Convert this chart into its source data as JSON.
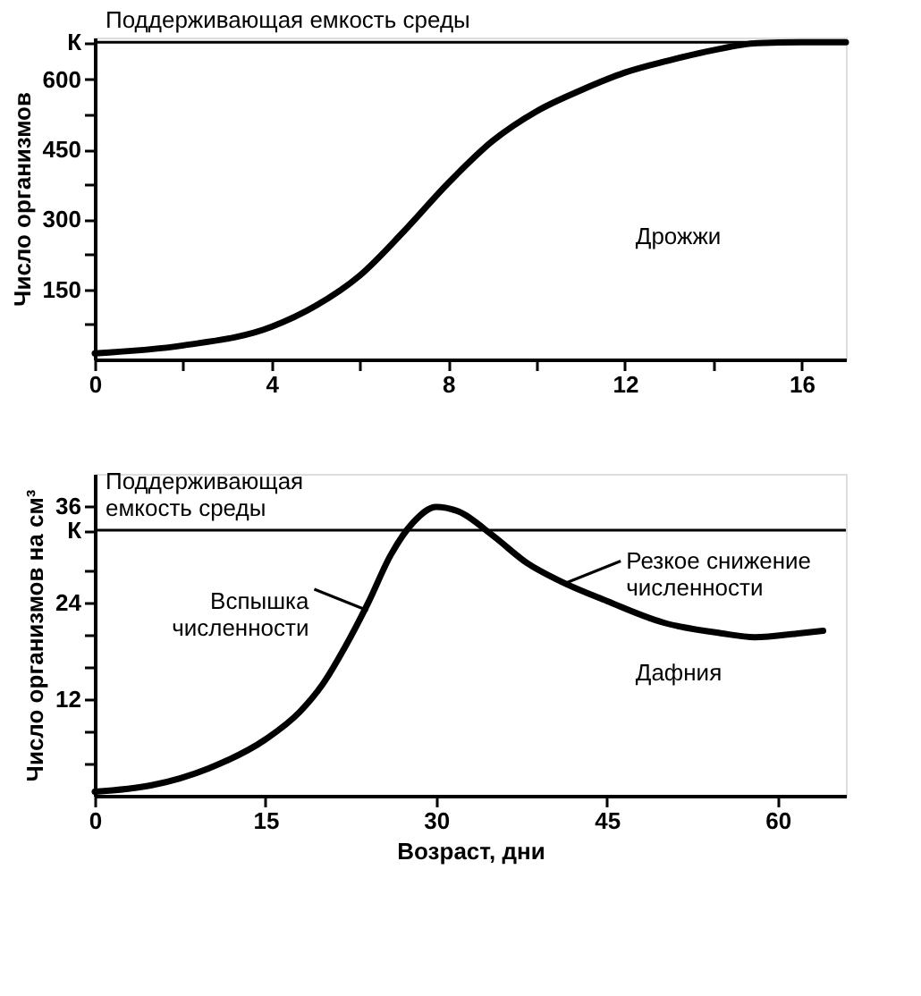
{
  "chart_data": [
    {
      "type": "line",
      "ylabel": "Число организмов",
      "xlim": [
        0,
        17
      ],
      "ylim": [
        0,
        690
      ],
      "xticks": [
        0,
        {
          "value": 2,
          "label": null
        },
        4,
        {
          "value": 6,
          "label": null
        },
        8,
        {
          "value": 10,
          "label": null
        },
        12,
        {
          "value": 14,
          "label": null
        },
        16
      ],
      "yticks": [
        {
          "value": 75,
          "label": null
        },
        150,
        {
          "value": 225,
          "label": null
        },
        300,
        {
          "value": 375,
          "label": null
        },
        450,
        {
          "value": 525,
          "label": null
        },
        600,
        {
          "value": 680,
          "label": "К"
        }
      ],
      "series": [
        {
          "color": "#000000",
          "x": [
            0,
            2,
            4,
            5,
            6,
            7,
            8,
            9,
            10,
            11,
            12,
            13,
            14,
            15,
            16,
            17
          ],
          "values": [
            13,
            30,
            70,
            115,
            180,
            275,
            378,
            468,
            532,
            577,
            615,
            641,
            663,
            678,
            680,
            680
          ]
        }
      ],
      "ref_lines": [
        {
          "axis": "y",
          "value": 680,
          "label": "Поддерживающая емкость среды",
          "color": "#000000"
        }
      ],
      "annotations": [
        "Дрожжи"
      ],
      "grid": false,
      "line_style": "solid",
      "marker": "none"
    },
    {
      "type": "line",
      "xlabel": "Возраст, дни",
      "ylabel": "Число организмов на см³",
      "xlim": [
        0,
        66
      ],
      "ylim": [
        0,
        40
      ],
      "xticks": [
        0,
        15,
        30,
        45,
        60
      ],
      "yticks": [
        {
          "value": 4,
          "label": null
        },
        {
          "value": 8,
          "label": null
        },
        12,
        {
          "value": 16,
          "label": null
        },
        {
          "value": 20,
          "label": null
        },
        24,
        {
          "value": 28,
          "label": null
        },
        {
          "value": 33,
          "label": "К"
        },
        36
      ],
      "series": [
        {
          "color": "#000000",
          "x": [
            0,
            5,
            10,
            15,
            18,
            20,
            22,
            24,
            26,
            28,
            30,
            32,
            35,
            38,
            41,
            45,
            50,
            55,
            58,
            62,
            64
          ],
          "values": [
            0.5,
            1.3,
            3.4,
            7,
            10.4,
            13.8,
            18.5,
            23.9,
            29.9,
            34,
            35.9,
            35.3,
            32.3,
            28.9,
            26.6,
            24.2,
            21.5,
            20.2,
            19.7,
            20.2,
            20.5
          ]
        }
      ],
      "ref_lines": [
        {
          "axis": "y",
          "value": 33,
          "label": "Поддерживающая\nемкость среды",
          "color": "#000000"
        }
      ],
      "annotations": [
        "Дафния",
        {
          "text": "Вспышка\nчисленности",
          "x": 24,
          "y": 23
        },
        {
          "text": "Резкое снижение\nчисленности",
          "x": 41.5,
          "y": 26.5
        }
      ],
      "grid": false,
      "line_style": "solid",
      "marker": "none"
    }
  ]
}
